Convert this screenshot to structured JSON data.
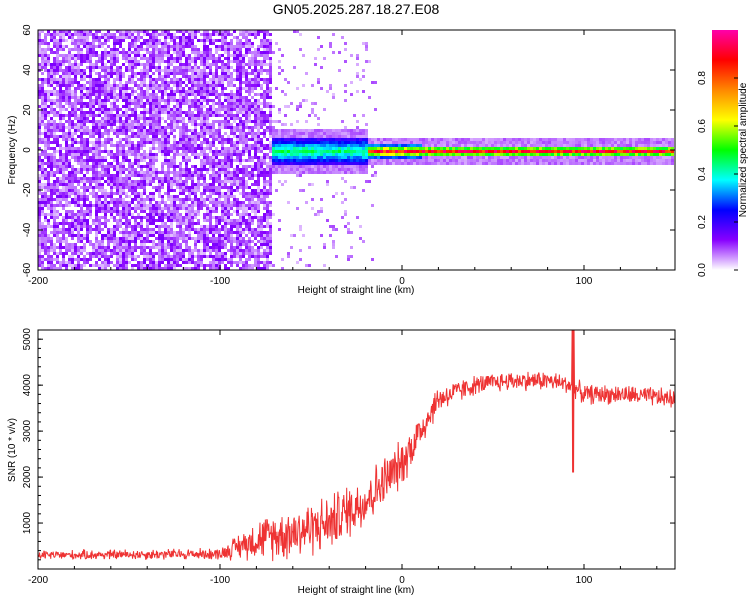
{
  "title": "GN05.2025.287.18.27.E08",
  "chart_data": [
    {
      "type": "heatmap",
      "name": "spectrogram",
      "xlabel": "Height of straight line (km)",
      "ylabel": "Frequency (Hz)",
      "xlim": [
        -200,
        150
      ],
      "ylim": [
        -60,
        60
      ],
      "xticks": [
        -200,
        -100,
        0,
        100
      ],
      "xtick_labels": [
        "-200",
        "-100",
        "0",
        "100"
      ],
      "yticks": [
        -60,
        -40,
        -20,
        0,
        20,
        40,
        60
      ],
      "ytick_labels": [
        "-60",
        "-40",
        "-20",
        "0",
        "20",
        "40",
        "60"
      ],
      "noise_region_x": [
        -200,
        -72
      ],
      "sparse_region_x": [
        -72,
        -15
      ],
      "signal": {
        "start_x": -72,
        "center_freq": 0,
        "segments": [
          {
            "x": [
              -72,
              -20
            ],
            "half_width": 7,
            "peak": 0.5
          },
          {
            "x": [
              -20,
              10
            ],
            "half_width": 3,
            "peak": 0.95
          },
          {
            "x": [
              10,
              150
            ],
            "half_width": 2.5,
            "peak": 0.97
          }
        ]
      },
      "colorbar": {
        "label": "Normalized spectral amplitude",
        "range": [
          0,
          1
        ],
        "ticks": [
          0.0,
          0.2,
          0.4,
          0.6,
          0.8
        ],
        "tick_labels": [
          "0.0",
          "0.2",
          "0.4",
          "0.6",
          "0.8"
        ],
        "colors": [
          "#ffffff",
          "#8800ff",
          "#0000ff",
          "#00ffff",
          "#00ff00",
          "#ffff00",
          "#ff8800",
          "#ff0000",
          "#ff00aa"
        ]
      }
    },
    {
      "type": "line",
      "name": "snr",
      "xlabel": "Height of straight line (km)",
      "ylabel": "SNR (10 * v/v)",
      "xlim": [
        -200,
        150
      ],
      "ylim": [
        0,
        5200
      ],
      "xticks": [
        -200,
        -100,
        0,
        100
      ],
      "xtick_labels": [
        "-200",
        "-100",
        "0",
        "100"
      ],
      "yticks": [
        1000,
        2000,
        3000,
        4000,
        5000
      ],
      "ytick_labels": [
        "1000",
        "2000",
        "3000",
        "4000",
        "5000"
      ],
      "color": "#ee3333",
      "envelope_x": [
        -200,
        -100,
        -80,
        -60,
        -40,
        -20,
        0,
        10,
        20,
        40,
        60,
        80,
        93,
        100,
        120,
        150
      ],
      "envelope_mean": [
        300,
        330,
        650,
        800,
        1000,
        1500,
        2300,
        3000,
        3700,
        4000,
        4100,
        4100,
        4000,
        3800,
        3800,
        3700
      ],
      "envelope_spread": [
        120,
        150,
        500,
        700,
        700,
        700,
        600,
        500,
        350,
        250,
        250,
        250,
        250,
        250,
        250,
        250
      ],
      "spike": {
        "x": 94,
        "max": 5200,
        "min": 2100
      }
    }
  ]
}
